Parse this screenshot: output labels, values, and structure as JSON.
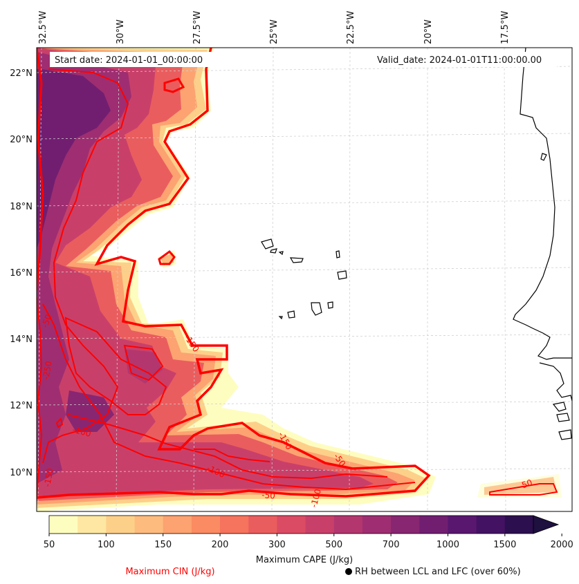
{
  "map": {
    "start_date_text": "Start date: 2024-01-01_00:00:00",
    "valid_date_text": "Valid_date: 2024-01-01T11:00:00.00",
    "lon_labels": [
      "32.5°W",
      "30°W",
      "27.5°W",
      "25°W",
      "22.5°W",
      "20°W",
      "17.5°W"
    ],
    "lat_labels": [
      "22°N",
      "20°N",
      "18°N",
      "16°N",
      "14°N",
      "12°N",
      "10°N"
    ],
    "contour_labels": [
      "-50",
      "-250",
      "-150",
      "-100",
      "-150",
      "-100",
      "-50",
      "-150",
      "-50",
      "-100",
      "-50"
    ]
  },
  "colorbar": {
    "tick_labels": [
      "50",
      "100",
      "150",
      "200",
      "300",
      "500",
      "700",
      "1000",
      "1500",
      "2000"
    ],
    "title": "Maximum CAPE (J/kg)",
    "colors": [
      "#fefdc0",
      "#fde7a2",
      "#fdd08a",
      "#fdbb7e",
      "#fca371",
      "#fb8b62",
      "#f6735d",
      "#ea5d5e",
      "#db4b63",
      "#c8406a",
      "#b3366f",
      "#9e2e71",
      "#882672",
      "#711e71",
      "#591770",
      "#431263",
      "#2c0f4e"
    ],
    "extend_color": "#1e103f"
  },
  "footer": {
    "cin_label": "Maximum CIN (J/kg)",
    "cin_color": "#ff0000",
    "rh_label": "RH between LCL and LFC (over 60%)"
  }
}
